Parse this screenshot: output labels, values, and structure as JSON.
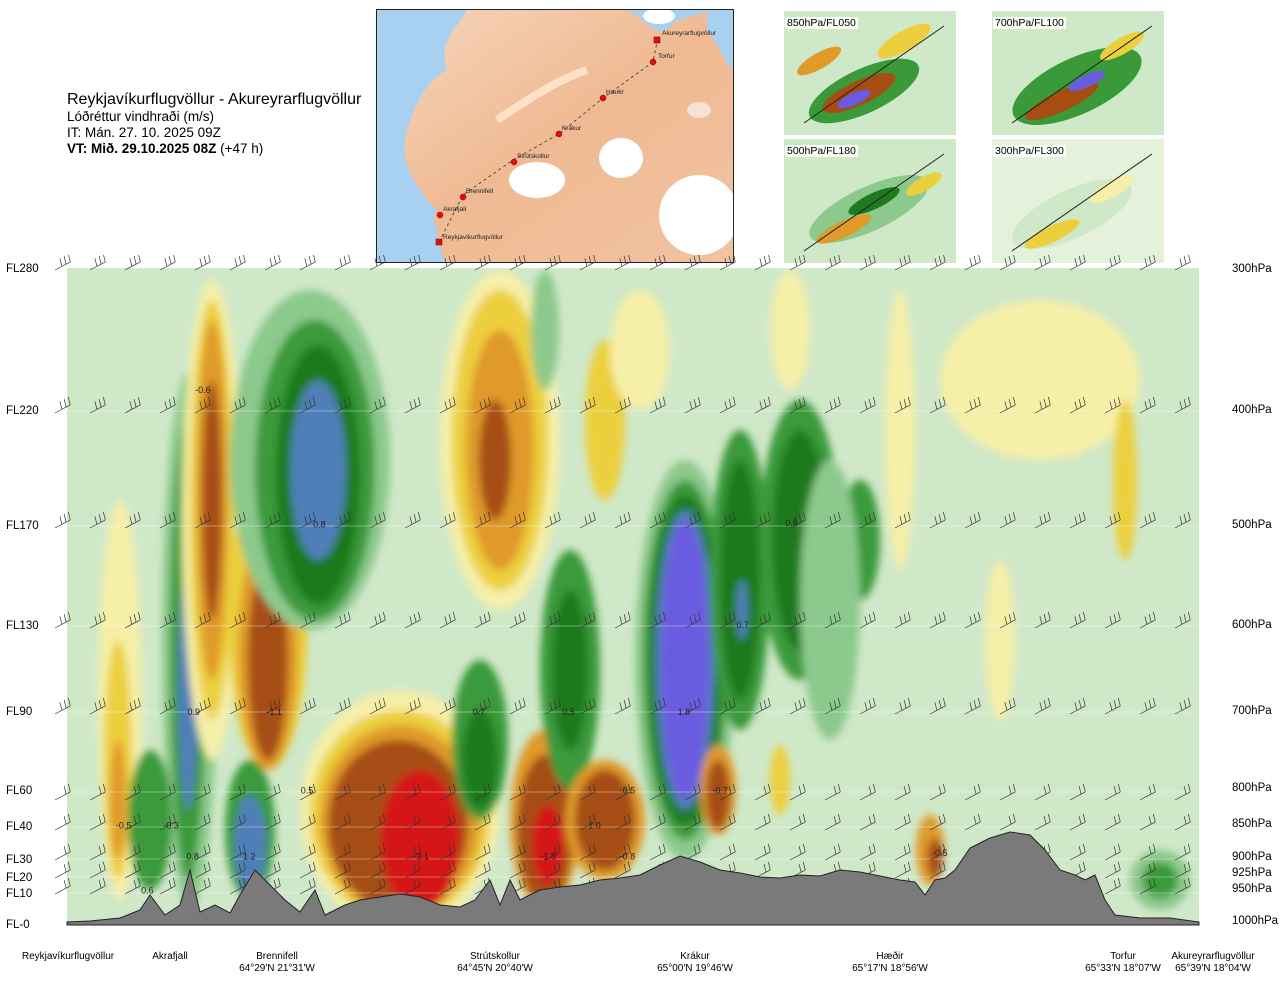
{
  "header": {
    "route": "Reykjavíkurflugvöllur - Akureyrarflugvöllur",
    "quantity": "Lóðréttur vindhraði (m/s)",
    "issue_time": "IT: Mán. 27. 10. 2025 09Z",
    "valid_prefix": "VT: Mið. 29.10.2025 08Z",
    "valid_suffix": "(+47 h)"
  },
  "route_map": {
    "waypoints": [
      "Akureyrarflugvöllur",
      "Torfur",
      "Hæðir",
      "Krákur",
      "Strútskollur",
      "Brennifell",
      "Akrafjall",
      "Reykjavíkurflugvöllur"
    ]
  },
  "thumbnails": [
    {
      "label": "850hPa/FL050"
    },
    {
      "label": "700hPa/FL100"
    },
    {
      "label": "500hPa/FL180"
    },
    {
      "label": "300hPa/FL300"
    }
  ],
  "colors": {
    "strong_up_blue": "#6a5be0",
    "up_blue": "#4f7fb8",
    "up_dark_green": "#1e7a1e",
    "up_green": "#3a9a3a",
    "up_light_green": "#8cc98c",
    "neutral_green": "#cfe8c8",
    "down_light_yellow": "#f6efa8",
    "down_yellow": "#eccf3c",
    "down_orange": "#e09a2a",
    "down_brown": "#a64e12",
    "strong_down_red": "#d41515",
    "terrain": "#7a7a7a"
  },
  "chart_data": {
    "type": "heatmap",
    "title": "Lóðréttur vindhraði (m/s)",
    "xlabel": "",
    "ylabel": "",
    "y_levels": [
      {
        "fl": "FL280",
        "hpa": "300hPa"
      },
      {
        "fl": "FL220",
        "hpa": "400hPa"
      },
      {
        "fl": "FL170",
        "hpa": "500hPa"
      },
      {
        "fl": "FL130",
        "hpa": "600hPa"
      },
      {
        "fl": "FL90",
        "hpa": "700hPa"
      },
      {
        "fl": "FL60",
        "hpa": "800hPa"
      },
      {
        "fl": "FL40",
        "hpa": "850hPa"
      },
      {
        "fl": "FL30",
        "hpa": "900hPa"
      },
      {
        "fl": "FL20",
        "hpa": "925hPa"
      },
      {
        "fl": "FL10",
        "hpa": "950hPa"
      },
      {
        "fl": "FL-0",
        "hpa": "1000hPa"
      }
    ],
    "locations": [
      {
        "name": "Reykjavíkurflugvöllur",
        "coords": "",
        "x": 0.0
      },
      {
        "name": "Akrafjall",
        "coords": "",
        "x": 0.09
      },
      {
        "name": "Brennifell",
        "coords": "64°29'N 21°31'W",
        "x": 0.185
      },
      {
        "name": "Strútskollur",
        "coords": "64°45'N 20°40'W",
        "x": 0.378
      },
      {
        "name": "Krákur",
        "coords": "65°00'N 19°46'W",
        "x": 0.575
      },
      {
        "name": "Hæðir",
        "coords": "65°17'N 18°56'W",
        "x": 0.77
      },
      {
        "name": "Torfur",
        "coords": "65°33'N 18°07'W",
        "x": 0.934
      },
      {
        "name": "Akureyrarflugvöllur",
        "coords": "65°39'N 18°04'W",
        "x": 1.0
      }
    ],
    "extrema_labels": [
      {
        "text": "-0.6",
        "x": 0.12,
        "y": 0.19
      },
      {
        "text": "0.8",
        "x": 0.223,
        "y": 0.395
      },
      {
        "text": "0.6",
        "x": 0.64,
        "y": 0.393
      },
      {
        "text": "0.7",
        "x": 0.597,
        "y": 0.548
      },
      {
        "text": "0.9",
        "x": 0.112,
        "y": 0.68
      },
      {
        "text": "-1.1",
        "x": 0.183,
        "y": 0.68
      },
      {
        "text": "0.7",
        "x": 0.364,
        "y": 0.68
      },
      {
        "text": "0.5",
        "x": 0.443,
        "y": 0.68
      },
      {
        "text": "1.8",
        "x": 0.545,
        "y": 0.68
      },
      {
        "text": "0.5",
        "x": 0.212,
        "y": 0.8
      },
      {
        "text": "-0.5",
        "x": 0.495,
        "y": 0.8
      },
      {
        "text": "-0.7",
        "x": 0.577,
        "y": 0.8
      },
      {
        "text": "-0.5",
        "x": 0.05,
        "y": 0.853
      },
      {
        "text": "-0.3",
        "x": 0.092,
        "y": 0.853
      },
      {
        "text": "1.0",
        "x": 0.466,
        "y": 0.853
      },
      {
        "text": "0.8",
        "x": 0.111,
        "y": 0.9
      },
      {
        "text": "1.2",
        "x": 0.161,
        "y": 0.9
      },
      {
        "text": "-3.1",
        "x": 0.313,
        "y": 0.9
      },
      {
        "text": "-1.8",
        "x": 0.425,
        "y": 0.9
      },
      {
        "text": "-0.8",
        "x": 0.495,
        "y": 0.9
      },
      {
        "text": "-0.5",
        "x": 0.771,
        "y": 0.895
      },
      {
        "text": "0.6",
        "x": 0.071,
        "y": 0.952
      }
    ]
  }
}
